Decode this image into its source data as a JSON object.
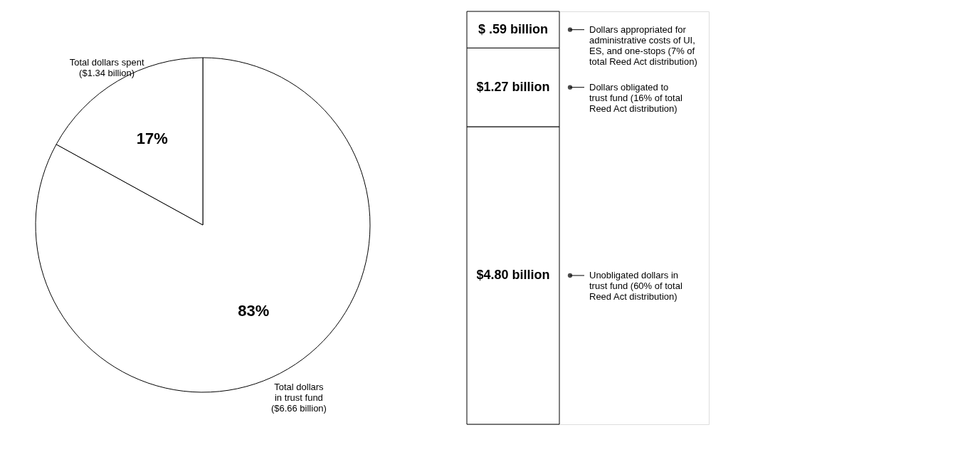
{
  "chart_data": [
    {
      "type": "pie",
      "categories": [
        "Total dollars\nin trust fund\n($6.66 billion)",
        "Total dollars spent\n($1.34 billion)"
      ],
      "values": [
        83,
        17
      ],
      "colors": [
        "#ffffff",
        "#ffffff"
      ],
      "value_labels": [
        "83%",
        "17%"
      ]
    },
    {
      "type": "bar",
      "stacked": true,
      "categories": [
        null
      ],
      "legend": "right",
      "series": [
        {
          "name": "Unobligated dollars in\ntrust fund (60% of total\nReed Act distribution)",
          "color": "#ffffff",
          "values": [
            4.8
          ],
          "value_labels": [
            "$4.80 billion"
          ]
        },
        {
          "name": "Dollars obligated to\ntrust fund (16% of total\nReed Act distribution)",
          "color": "#ffffff",
          "values": [
            1.27
          ],
          "value_labels": [
            "$1.27 billion"
          ]
        },
        {
          "name": "Dollars appropriated for\nadministrative costs of UI,\nES, and one-stops (7% of\ntotal Reed Act distribution)",
          "color": "#ffffff",
          "values": [
            0.59
          ],
          "value_labels": [
            "$  .59 billion"
          ]
        }
      ]
    }
  ]
}
